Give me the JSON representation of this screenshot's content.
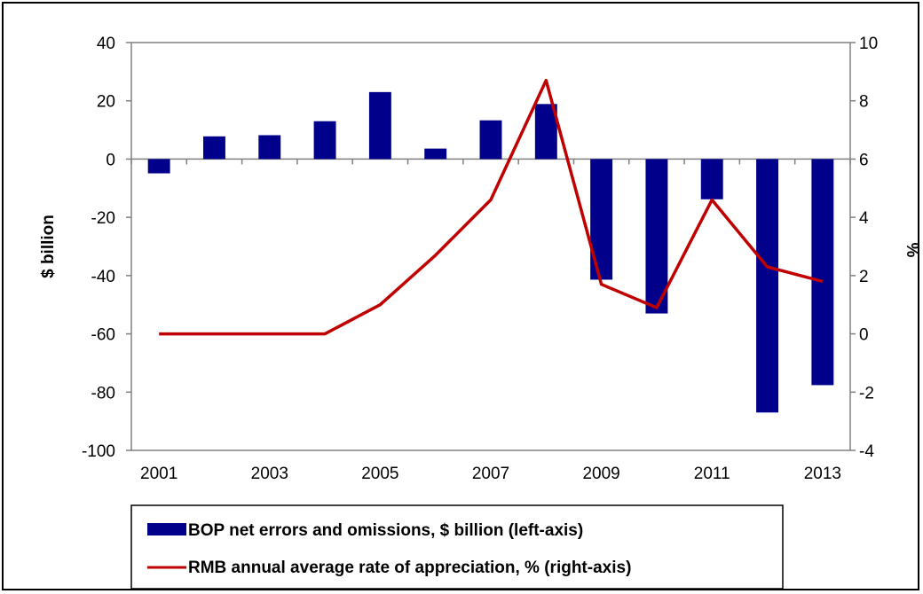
{
  "chart_data": {
    "type": "bar+line",
    "categories": [
      "2001",
      "2002",
      "2003",
      "2004",
      "2005",
      "2006",
      "2007",
      "2008",
      "2009",
      "2010",
      "2011",
      "2012",
      "2013"
    ],
    "x_tick_labels": [
      "2001",
      "2003",
      "2005",
      "2007",
      "2009",
      "2011",
      "2013"
    ],
    "left_axis": {
      "label": "$ billion",
      "range": [
        -100,
        40
      ],
      "ticks": [
        "40",
        "20",
        "0",
        "-20",
        "-40",
        "-60",
        "-80",
        "-100"
      ]
    },
    "right_axis": {
      "label": "%",
      "range": [
        -4,
        10
      ],
      "ticks": [
        "10",
        "8",
        "6",
        "4",
        "2",
        "0",
        "-2",
        "-4"
      ]
    },
    "series": [
      {
        "name": "BOP net errors and omissions, $ billion (left-axis)",
        "type": "bar",
        "axis": "left",
        "color": "#00008B",
        "values": [
          -4.9,
          7.8,
          8.2,
          13.0,
          23.0,
          3.6,
          13.3,
          18.9,
          -41.4,
          -53.0,
          -13.8,
          -87.0,
          -77.6
        ]
      },
      {
        "name": "RMB annual average rate of appreciation, % (right-axis)",
        "type": "line",
        "axis": "right",
        "color": "#C00000",
        "values": [
          0.0,
          0.0,
          0.0,
          0.0,
          1.0,
          2.7,
          4.6,
          8.7,
          1.7,
          0.9,
          4.6,
          2.3,
          1.8
        ]
      }
    ],
    "grid": false,
    "legend_position": "bottom"
  }
}
